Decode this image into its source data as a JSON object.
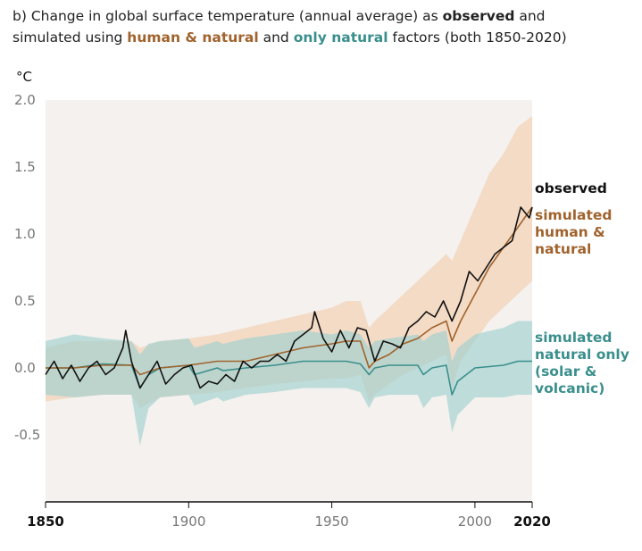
{
  "title": {
    "prefix": "b) Change in global surface temperature (annual average) as ",
    "observed": "observed",
    "and1": " and",
    "line2_prefix": "simulated using ",
    "human": "human & natural",
    "and2": " and ",
    "natural": "only natural",
    "suffix": " factors (both 1850-2020)"
  },
  "colors": {
    "observed": "#111111",
    "human_natural": "#a0632d",
    "human_natural_band": "#f3d3b8",
    "natural_only": "#3a8f8c",
    "natural_only_band": "#9fd1cf",
    "plot_bg": "#f4f1ee"
  },
  "chart_data": {
    "type": "line",
    "ylabel": "°C",
    "xlim": [
      1850,
      2020
    ],
    "ylim": [
      -1.0,
      2.0
    ],
    "yticks": [
      "2.0",
      "1.5",
      "1.0",
      "0.5",
      "0.0",
      "-0.5"
    ],
    "xticks": [
      "1850",
      "1900",
      "1950",
      "2000",
      "2020"
    ],
    "xticks_bold": [
      "1850",
      "2020"
    ],
    "series": [
      {
        "name": "observed",
        "label_lines": [
          "observed"
        ],
        "x": [
          1850,
          1853,
          1856,
          1859,
          1862,
          1865,
          1868,
          1871,
          1874,
          1877,
          1878,
          1880,
          1883,
          1886,
          1889,
          1892,
          1895,
          1898,
          1901,
          1904,
          1907,
          1910,
          1913,
          1916,
          1919,
          1922,
          1925,
          1928,
          1931,
          1934,
          1937,
          1940,
          1943,
          1944,
          1947,
          1950,
          1953,
          1956,
          1959,
          1962,
          1965,
          1968,
          1971,
          1974,
          1977,
          1980,
          1983,
          1986,
          1989,
          1992,
          1995,
          1998,
          2001,
          2004,
          2007,
          2010,
          2013,
          2016,
          2019,
          2020
        ],
        "values": [
          -0.05,
          0.05,
          -0.08,
          0.02,
          -0.1,
          0.0,
          0.05,
          -0.05,
          0.0,
          0.15,
          0.28,
          0.05,
          -0.15,
          -0.05,
          0.05,
          -0.12,
          -0.05,
          0.0,
          0.02,
          -0.15,
          -0.1,
          -0.12,
          -0.05,
          -0.1,
          0.05,
          0.0,
          0.05,
          0.05,
          0.1,
          0.05,
          0.2,
          0.25,
          0.3,
          0.42,
          0.22,
          0.12,
          0.28,
          0.15,
          0.3,
          0.28,
          0.05,
          0.2,
          0.18,
          0.15,
          0.3,
          0.35,
          0.42,
          0.38,
          0.5,
          0.35,
          0.5,
          0.72,
          0.65,
          0.75,
          0.85,
          0.9,
          0.95,
          1.2,
          1.12,
          1.2
        ]
      },
      {
        "name": "simulated human & natural",
        "label_lines": [
          "simulated",
          "human &",
          "natural"
        ],
        "x": [
          1850,
          1860,
          1870,
          1880,
          1883,
          1890,
          1900,
          1910,
          1920,
          1930,
          1940,
          1950,
          1955,
          1960,
          1963,
          1965,
          1970,
          1975,
          1980,
          1985,
          1990,
          1992,
          1995,
          2000,
          2005,
          2010,
          2015,
          2020
        ],
        "values": [
          0.0,
          0.0,
          0.02,
          0.02,
          -0.05,
          0.0,
          0.02,
          0.05,
          0.05,
          0.1,
          0.15,
          0.18,
          0.2,
          0.2,
          0.0,
          0.05,
          0.1,
          0.18,
          0.22,
          0.3,
          0.35,
          0.2,
          0.35,
          0.55,
          0.75,
          0.9,
          1.05,
          1.2
        ],
        "band_upper": [
          0.15,
          0.2,
          0.2,
          0.2,
          0.15,
          0.2,
          0.22,
          0.25,
          0.3,
          0.35,
          0.4,
          0.45,
          0.5,
          0.5,
          0.3,
          0.35,
          0.45,
          0.55,
          0.65,
          0.75,
          0.85,
          0.8,
          0.95,
          1.2,
          1.45,
          1.6,
          1.8,
          1.88
        ],
        "band_lower": [
          -0.25,
          -0.22,
          -0.2,
          -0.2,
          -0.3,
          -0.22,
          -0.2,
          -0.18,
          -0.15,
          -0.12,
          -0.1,
          -0.08,
          -0.08,
          -0.05,
          -0.25,
          -0.2,
          -0.12,
          -0.05,
          0.0,
          0.05,
          0.1,
          -0.15,
          0.05,
          0.2,
          0.35,
          0.45,
          0.55,
          0.65
        ]
      },
      {
        "name": "simulated natural only (solar & volcanic)",
        "label_lines": [
          "simulated",
          "natural only",
          "(solar &",
          "volcanic)"
        ],
        "x": [
          1850,
          1860,
          1870,
          1880,
          1883,
          1886,
          1890,
          1900,
          1902,
          1910,
          1912,
          1920,
          1930,
          1940,
          1950,
          1955,
          1960,
          1963,
          1965,
          1970,
          1980,
          1982,
          1985,
          1990,
          1992,
          1994,
          2000,
          2010,
          2015,
          2020
        ],
        "values": [
          0.0,
          0.0,
          0.03,
          0.02,
          -0.15,
          -0.05,
          0.0,
          0.02,
          -0.05,
          0.0,
          -0.02,
          0.0,
          0.02,
          0.05,
          0.05,
          0.05,
          0.03,
          -0.05,
          0.0,
          0.02,
          0.02,
          -0.05,
          0.0,
          0.02,
          -0.2,
          -0.1,
          0.0,
          0.02,
          0.05,
          0.05
        ],
        "band_upper": [
          0.2,
          0.25,
          0.22,
          0.2,
          0.1,
          0.18,
          0.2,
          0.22,
          0.15,
          0.2,
          0.18,
          0.22,
          0.25,
          0.28,
          0.25,
          0.28,
          0.25,
          0.15,
          0.2,
          0.22,
          0.25,
          0.2,
          0.25,
          0.28,
          0.05,
          0.15,
          0.25,
          0.3,
          0.35,
          0.35
        ],
        "band_lower": [
          -0.2,
          -0.22,
          -0.2,
          -0.2,
          -0.58,
          -0.3,
          -0.22,
          -0.2,
          -0.28,
          -0.22,
          -0.25,
          -0.2,
          -0.18,
          -0.15,
          -0.15,
          -0.15,
          -0.18,
          -0.3,
          -0.22,
          -0.2,
          -0.2,
          -0.3,
          -0.22,
          -0.2,
          -0.48,
          -0.35,
          -0.22,
          -0.22,
          -0.2,
          -0.2
        ]
      }
    ],
    "grid": false,
    "legend": "right (inline labels)"
  }
}
